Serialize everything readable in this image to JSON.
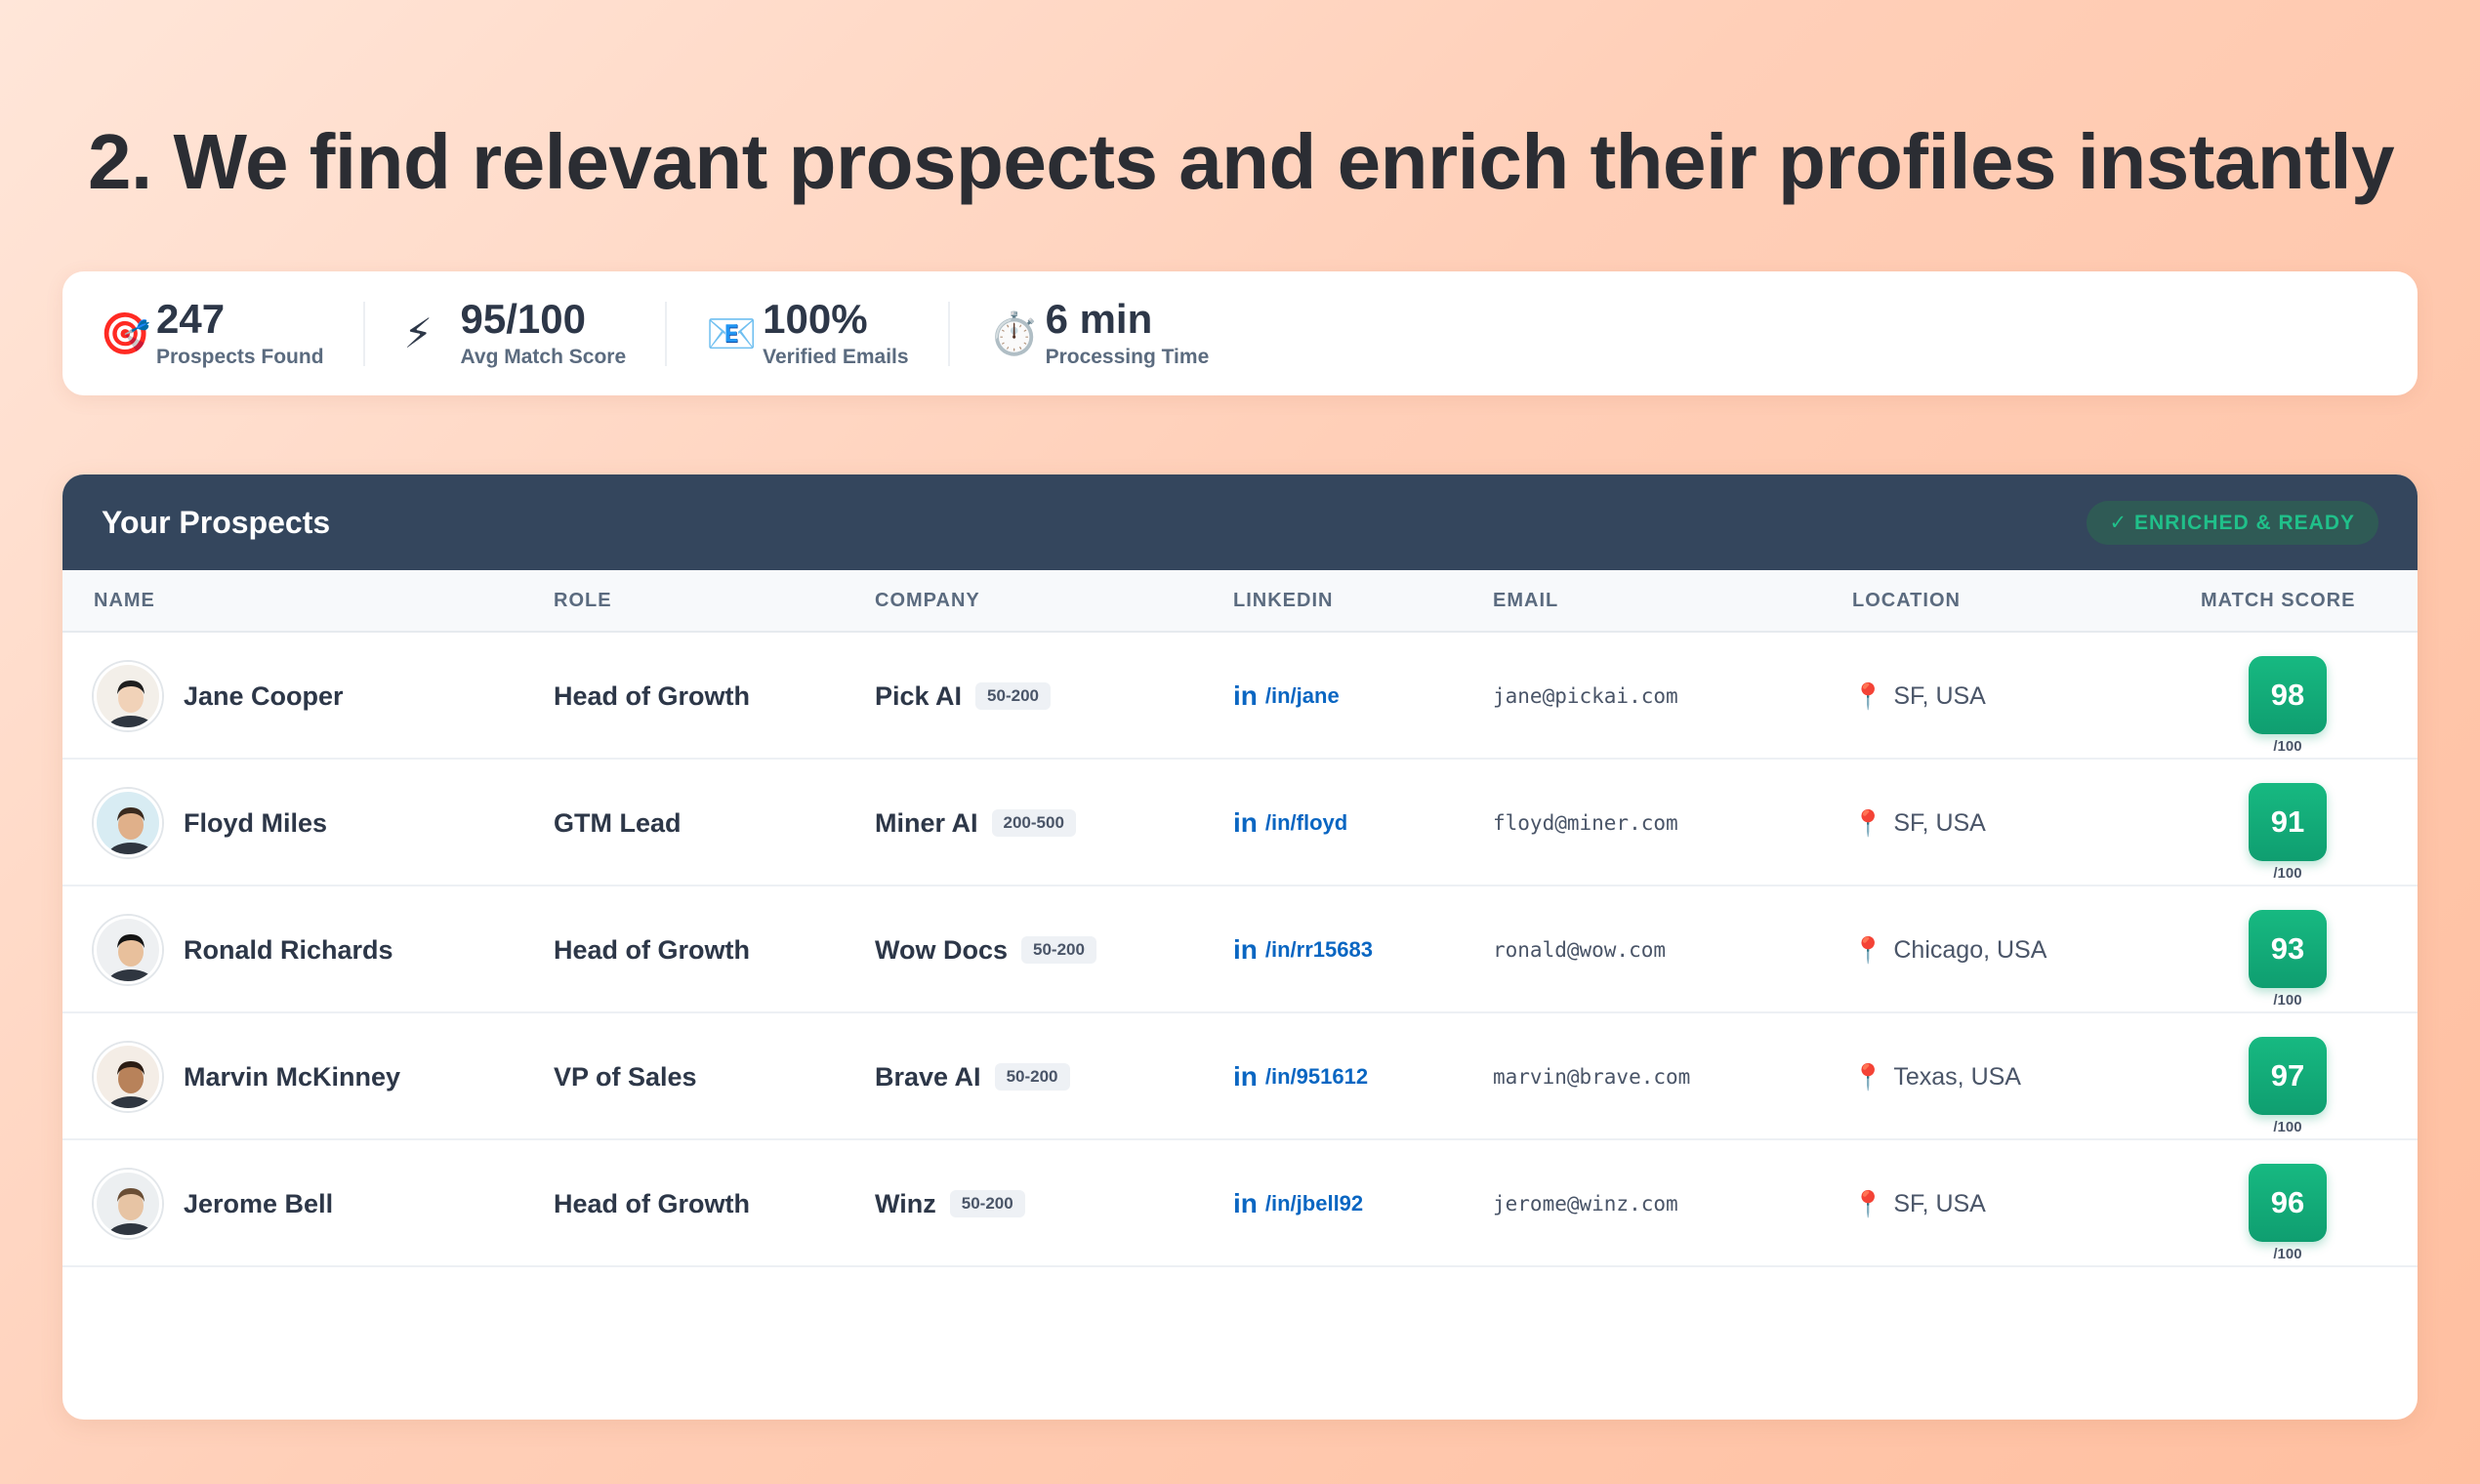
{
  "headline": "2. We find relevant prospects and enrich their profiles instantly",
  "stats": [
    {
      "icon": "target-icon",
      "glyph": "🎯",
      "value": "247",
      "label": "Prospects Found"
    },
    {
      "icon": "lightning-icon",
      "glyph": "⚡",
      "value": "95/100",
      "label": "Avg Match Score"
    },
    {
      "icon": "email-icon",
      "glyph": "📧",
      "value": "100%",
      "label": "Verified Emails"
    },
    {
      "icon": "stopwatch-icon",
      "glyph": "⏱️",
      "value": "6 min",
      "label": "Processing Time"
    }
  ],
  "table": {
    "title": "Your Prospects",
    "badge": "✓ ENRICHED & READY",
    "columns": [
      "NAME",
      "ROLE",
      "COMPANY",
      "LINKEDIN",
      "EMAIL",
      "LOCATION",
      "MATCH SCORE"
    ],
    "linkedin_logo": "in",
    "score_suffix": "/100",
    "rows": [
      {
        "name": "Jane Cooper",
        "role": "Head of Growth",
        "company": "Pick AI",
        "size": "50-200",
        "linkedin": "/in/jane",
        "email": "jane@pickai.com",
        "location": "SF, USA",
        "score": "98"
      },
      {
        "name": "Floyd Miles",
        "role": "GTM Lead",
        "company": "Miner AI",
        "size": "200-500",
        "linkedin": "/in/floyd",
        "email": "floyd@miner.com",
        "location": "SF, USA",
        "score": "91"
      },
      {
        "name": "Ronald Richards",
        "role": "Head of Growth",
        "company": "Wow Docs",
        "size": "50-200",
        "linkedin": "/in/rr15683",
        "email": "ronald@wow.com",
        "location": "Chicago, USA",
        "score": "93"
      },
      {
        "name": "Marvin McKinney",
        "role": "VP of Sales",
        "company": "Brave AI",
        "size": "50-200",
        "linkedin": "/in/951612",
        "email": "marvin@brave.com",
        "location": "Texas, USA",
        "score": "97"
      },
      {
        "name": "Jerome Bell",
        "role": "Head of Growth",
        "company": "Winz",
        "size": "50-200",
        "linkedin": "/in/jbell92",
        "email": "jerome@winz.com",
        "location": "SF, USA",
        "score": "96"
      }
    ]
  },
  "colors": {
    "accent_green": "#10a070",
    "header_navy": "#34465d",
    "linkedin_blue": "#0a66c2"
  }
}
